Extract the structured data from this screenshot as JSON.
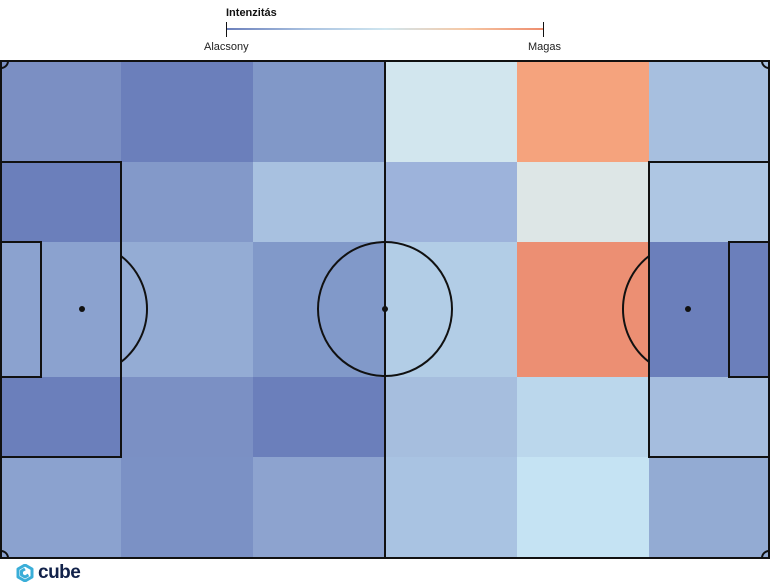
{
  "legend": {
    "title": "Intenzitás",
    "low_label": "Alacsony",
    "high_label": "Magas",
    "gradient": [
      "#6b7fbb",
      "#a9c1e0",
      "#cfe6f0",
      "#f6c9a6",
      "#ee8c6d"
    ]
  },
  "brand": {
    "name": "cube",
    "color": "#12224a",
    "mark_color": "#3aaed8"
  },
  "chart_data": {
    "type": "heatmap",
    "title": "",
    "rows": 5,
    "cols": 6,
    "values": [
      [
        0.18,
        0.1,
        0.2,
        0.55,
        0.85,
        0.4
      ],
      [
        0.12,
        0.22,
        0.4,
        0.35,
        0.6,
        0.42
      ],
      [
        0.28,
        0.3,
        0.22,
        0.45,
        0.95,
        0.08
      ],
      [
        0.12,
        0.22,
        0.08,
        0.4,
        0.48,
        0.42
      ],
      [
        0.28,
        0.2,
        0.3,
        0.45,
        0.52,
        0.3
      ]
    ],
    "colors": [
      [
        "#7b8fc3",
        "#6b7fbb",
        "#8198c8",
        "#d2e6ee",
        "#f5a37d",
        "#a7bfdf"
      ],
      [
        "#6b7fbb",
        "#8399c9",
        "#a8c1e0",
        "#9db3db",
        "#dde6e6",
        "#aec6e3"
      ],
      [
        "#8ba2cf",
        "#94acd4",
        "#8199c9",
        "#b2cde6",
        "#ec8f73",
        "#6b7fbb"
      ],
      [
        "#6b7fbb",
        "#7b90c4",
        "#6b7fbb",
        "#a6bede",
        "#bbd7ec",
        "#a5bdde"
      ],
      [
        "#8ba2cf",
        "#7b91c5",
        "#8da3cf",
        "#a9c3e2",
        "#c5e3f3",
        "#93abd3"
      ]
    ],
    "color_scale": {
      "low": "Alacsony",
      "high": "Magas"
    }
  }
}
